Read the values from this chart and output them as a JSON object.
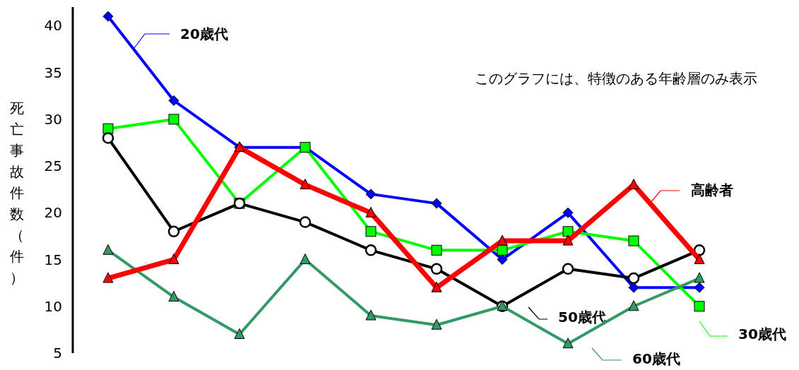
{
  "chart_data": {
    "type": "line",
    "ylabel": "死亡事故件数（件）",
    "annotations": [
      "このグラフには、特徴のある年齢層のみ表示"
    ],
    "categories": [
      null,
      null,
      null,
      null,
      null,
      null,
      null,
      null,
      null,
      null
    ],
    "ylim": [
      5,
      42
    ],
    "yticks": [
      5,
      10,
      15,
      20,
      25,
      30,
      35,
      40
    ],
    "grid": false,
    "legend": "right",
    "series": [
      {
        "name": "20歳代",
        "color": "#0000ff",
        "marker": "diamond",
        "values": [
          41,
          32,
          27,
          27,
          22,
          21,
          15,
          20,
          12,
          12
        ]
      },
      {
        "name": "30歳代",
        "color": "#00ff00",
        "marker": "square",
        "values": [
          29,
          30,
          21,
          27,
          18,
          16,
          16,
          18,
          17,
          10
        ]
      },
      {
        "name": "50歳代",
        "color": "#000000",
        "marker": "circle",
        "values": [
          28,
          18,
          21,
          19,
          16,
          14,
          10,
          14,
          13,
          16
        ]
      },
      {
        "name": "60歳代",
        "color": "#339966",
        "marker": "triangle",
        "values": [
          16,
          11,
          7,
          15,
          9,
          8,
          10,
          6,
          10,
          13
        ]
      },
      {
        "name": "高齢者",
        "color": "#ff0000",
        "marker": "triangle",
        "values": [
          13,
          15,
          27,
          23,
          20,
          12,
          17,
          17,
          23,
          15
        ]
      }
    ]
  }
}
